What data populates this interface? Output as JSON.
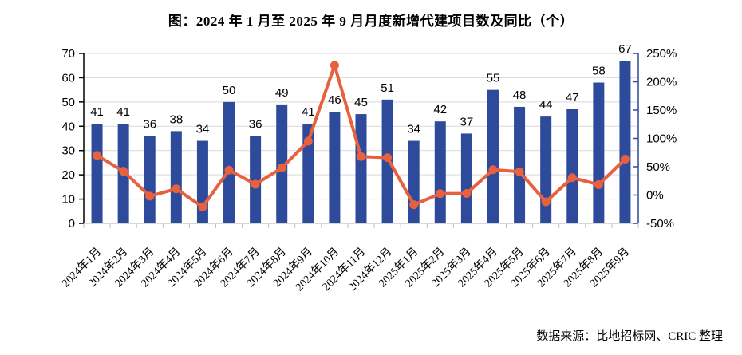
{
  "title": "图：2024 年 1 月至 2025 年 9 月月度新增代建项目数及同比（个）",
  "footer": {
    "source": "数据来源：比地招标网、CRIC 整理"
  },
  "chart_data": {
    "type": "bar+line",
    "title": "图：2024 年 1 月至 2025 年 9 月月度新增代建项目数及同比（个）",
    "categories": [
      "2024年1月",
      "2024年2月",
      "2024年3月",
      "2024年4月",
      "2024年5月",
      "2024年6月",
      "2024年7月",
      "2024年8月",
      "2024年9月",
      "2024年10月",
      "2024年11月",
      "2024年12月",
      "2025年1月",
      "2025年2月",
      "2025年3月",
      "2025年4月",
      "2025年5月",
      "2025年6月",
      "2025年7月",
      "2025年8月",
      "2025年9月"
    ],
    "series": [
      {
        "name": "月度新增代建项目数",
        "type": "bar",
        "axis": "left",
        "values": [
          41,
          41,
          36,
          38,
          34,
          50,
          36,
          49,
          41,
          46,
          45,
          51,
          34,
          42,
          37,
          55,
          48,
          44,
          47,
          58,
          67
        ]
      },
      {
        "name": "同比",
        "type": "line",
        "axis": "right",
        "values_pct": [
          70,
          42,
          -2,
          11,
          -21,
          44,
          19,
          48,
          95,
          229,
          68,
          66,
          -17.1,
          2.4,
          2.8,
          44.7,
          41.2,
          -12,
          30.6,
          18.4,
          63.4
        ]
      }
    ],
    "left_axis": {
      "min": 0,
      "max": 70,
      "tick_step": 10,
      "ticks": [
        0,
        10,
        20,
        30,
        40,
        50,
        60,
        70
      ]
    },
    "right_axis": {
      "min": -50,
      "max": 250,
      "tick_step": 50,
      "ticks_pct": [
        "-50%",
        "0%",
        "50%",
        "100%",
        "150%",
        "200%",
        "250%"
      ]
    },
    "grid": true,
    "bar_labels_visible": true,
    "legend": "none",
    "colors": {
      "bar": "#2E4B9B",
      "line": "#E7613F",
      "marker": "#E7613F",
      "grid": "#D9D9D9",
      "left_axis": "#000000",
      "bottom_axis": "#BFBFBF",
      "right_axis": "#2E4B9B",
      "text": "#000000"
    }
  }
}
